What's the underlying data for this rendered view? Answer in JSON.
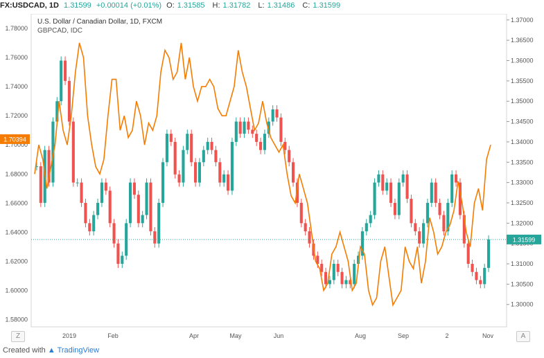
{
  "header": {
    "symbol": "FX:USDCAD, 1D",
    "price": "1.31599",
    "change": "+0.00014 (+0.01%)",
    "o_label": "O:",
    "o_value": "1.31585",
    "h_label": "H:",
    "h_value": "1.31782",
    "l_label": "L:",
    "l_value": "1.31486",
    "c_label": "C:",
    "c_value": "1.31599"
  },
  "footer": {
    "created_with": "Created with",
    "brand": "TradingView"
  },
  "corner_left": "Z",
  "corner_right": "A",
  "colors": {
    "orange": "#f57c00",
    "up": "#26a69a",
    "down": "#ef5350",
    "dotted": "#26a69a"
  },
  "chart_data": {
    "type": "line",
    "title": "U.S. Dollar / Canadian Dollar, 1D, FXCM",
    "subtitle": "GBPCAD, IDC",
    "x_ticks": [
      "2019",
      "Feb",
      "Apr",
      "May",
      "Jun",
      "Aug",
      "Sep",
      "2",
      "Nov"
    ],
    "left_axis": {
      "ticks": [
        "1.78000",
        "1.76000",
        "1.74000",
        "1.72000",
        "1.70000",
        "1.68000",
        "1.66000",
        "1.64000",
        "1.62000",
        "1.60000",
        "1.58000"
      ],
      "range": [
        1.575,
        1.79
      ]
    },
    "right_axis": {
      "ticks": [
        "1.37000",
        "1.36500",
        "1.36000",
        "1.35500",
        "1.35000",
        "1.34500",
        "1.34000",
        "1.33500",
        "1.33000",
        "1.32500",
        "1.32000",
        "1.31500",
        "1.31000",
        "1.30500",
        "1.30000"
      ],
      "range": [
        1.2945,
        1.3715
      ]
    },
    "left_marker": "1.70394",
    "right_marker": "1.31599",
    "series": [
      {
        "name": "GBPCAD, IDC",
        "axis": "left",
        "values": [
          1.68,
          1.7,
          1.69,
          1.67,
          1.685,
          1.7,
          1.73,
          1.71,
          1.7,
          1.72,
          1.75,
          1.77,
          1.76,
          1.72,
          1.7,
          1.685,
          1.68,
          1.69,
          1.72,
          1.745,
          1.745,
          1.71,
          1.72,
          1.705,
          1.71,
          1.73,
          1.72,
          1.7,
          1.715,
          1.71,
          1.72,
          1.75,
          1.765,
          1.76,
          1.745,
          1.75,
          1.77,
          1.745,
          1.76,
          1.74,
          1.73,
          1.74,
          1.74,
          1.745,
          1.74,
          1.725,
          1.72,
          1.72,
          1.73,
          1.74,
          1.765,
          1.75,
          1.74,
          1.725,
          1.71,
          1.715,
          1.73,
          1.715,
          1.705,
          1.7,
          1.695,
          1.7,
          1.68,
          1.665,
          1.66,
          1.68,
          1.67,
          1.66,
          1.64,
          1.62,
          1.615,
          1.6,
          1.605,
          1.625,
          1.63,
          1.64,
          1.63,
          1.62,
          1.6,
          1.605,
          1.63,
          1.625,
          1.6,
          1.59,
          1.595,
          1.62,
          1.63,
          1.61,
          1.59,
          1.595,
          1.6,
          1.63,
          1.62,
          1.615,
          1.63,
          1.605,
          1.62,
          1.65,
          1.64,
          1.625,
          1.63,
          1.64,
          1.645,
          1.655,
          1.675,
          1.66,
          1.64,
          1.63,
          1.66,
          1.67,
          1.655,
          1.69,
          1.7
        ]
      },
      {
        "name": "USDCAD",
        "axis": "right",
        "ohlc_close": [
          1.334,
          1.325,
          1.338,
          1.33,
          1.345,
          1.35,
          1.36,
          1.355,
          1.345,
          1.33,
          1.33,
          1.325,
          1.32,
          1.318,
          1.322,
          1.325,
          1.33,
          1.328,
          1.32,
          1.315,
          1.31,
          1.312,
          1.32,
          1.33,
          1.327,
          1.32,
          1.322,
          1.33,
          1.318,
          1.315,
          1.325,
          1.335,
          1.342,
          1.34,
          1.332,
          1.33,
          1.338,
          1.342,
          1.335,
          1.33,
          1.335,
          1.338,
          1.34,
          1.338,
          1.335,
          1.33,
          1.332,
          1.328,
          1.34,
          1.345,
          1.342,
          1.345,
          1.343,
          1.342,
          1.34,
          1.338,
          1.342,
          1.345,
          1.348,
          1.346,
          1.34,
          1.338,
          1.335,
          1.33,
          1.325,
          1.32,
          1.318,
          1.315,
          1.312,
          1.31,
          1.308,
          1.305,
          1.306,
          1.31,
          1.308,
          1.305,
          1.306,
          1.305,
          1.31,
          1.312,
          1.318,
          1.32,
          1.322,
          1.33,
          1.332,
          1.328,
          1.33,
          1.325,
          1.322,
          1.33,
          1.332,
          1.326,
          1.32,
          1.318,
          1.315,
          1.32,
          1.325,
          1.33,
          1.325,
          1.322,
          1.318,
          1.325,
          1.332,
          1.33,
          1.322,
          1.315,
          1.31,
          1.308,
          1.306,
          1.305,
          1.309,
          1.316
        ]
      }
    ]
  }
}
